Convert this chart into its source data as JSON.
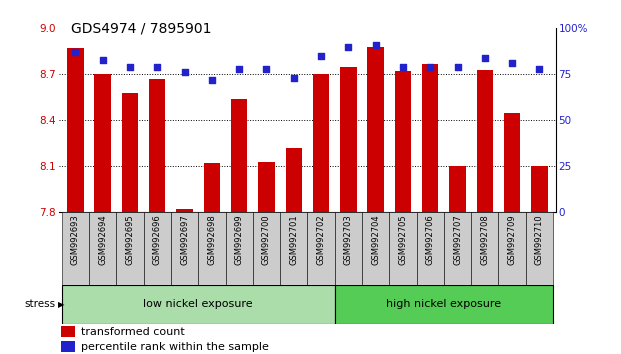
{
  "title": "GDS4974 / 7895901",
  "samples": [
    "GSM992693",
    "GSM992694",
    "GSM992695",
    "GSM992696",
    "GSM992697",
    "GSM992698",
    "GSM992699",
    "GSM992700",
    "GSM992701",
    "GSM992702",
    "GSM992703",
    "GSM992704",
    "GSM992705",
    "GSM992706",
    "GSM992707",
    "GSM992708",
    "GSM992709",
    "GSM992710"
  ],
  "transformed_count": [
    8.87,
    8.7,
    8.58,
    8.67,
    7.82,
    8.12,
    8.54,
    8.13,
    8.22,
    8.7,
    8.75,
    8.88,
    8.72,
    8.77,
    8.1,
    8.73,
    8.45,
    8.1
  ],
  "percentile_rank": [
    87,
    83,
    79,
    79,
    76,
    72,
    78,
    78,
    73,
    85,
    90,
    91,
    79,
    79,
    79,
    84,
    81,
    78
  ],
  "bar_color": "#cc0000",
  "dot_color": "#2222cc",
  "ymin": 7.8,
  "ymax": 9.0,
  "yticks": [
    7.8,
    8.1,
    8.4,
    8.7,
    9.0
  ],
  "y2min": 0,
  "y2max": 100,
  "y2ticks": [
    0,
    25,
    50,
    75,
    100
  ],
  "group1_label": "low nickel exposure",
  "group1_count": 10,
  "group2_label": "high nickel exposure",
  "group2_count": 8,
  "stress_label": "stress",
  "legend_bar": "transformed count",
  "legend_dot": "percentile rank within the sample",
  "bg_chart": "#ffffff",
  "bg_xtick": "#cccccc",
  "group1_color": "#aaddaa",
  "group2_color": "#55cc55",
  "title_fontsize": 10,
  "tick_fontsize": 7.5,
  "legend_fontsize": 8
}
